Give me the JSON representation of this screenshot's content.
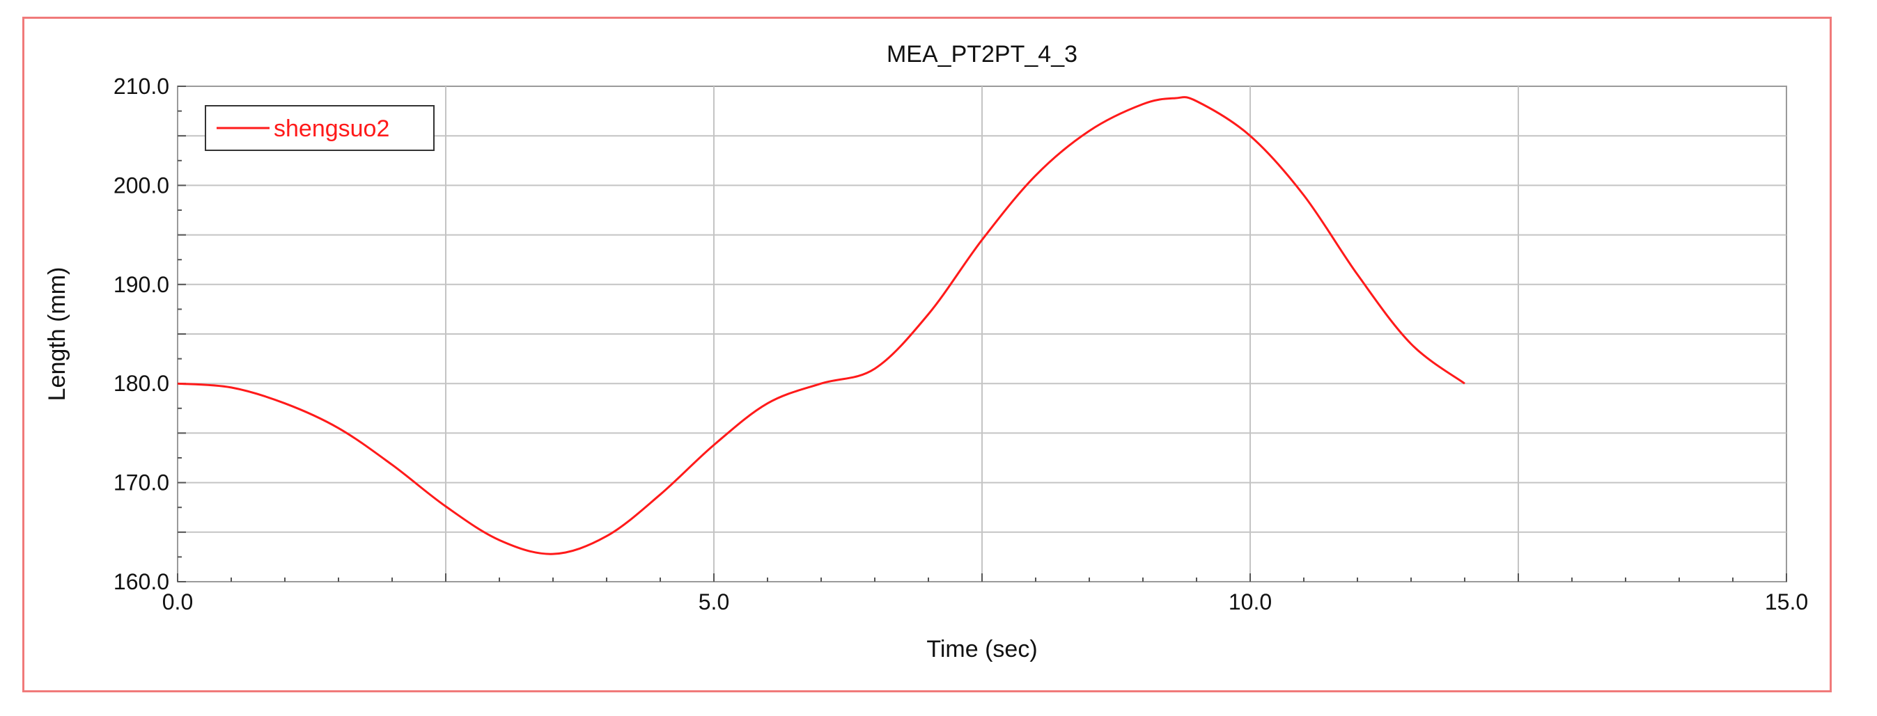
{
  "chart_data": {
    "type": "line",
    "title": "MEA_PT2PT_4_3",
    "xlabel": "Time (sec)",
    "ylabel": "Length (mm)",
    "xlim": [
      0.0,
      15.0
    ],
    "ylim": [
      160.0,
      210.0
    ],
    "x_ticks": [
      "0.0",
      "5.0",
      "10.0",
      "15.0"
    ],
    "y_ticks": [
      "160.0",
      "170.0",
      "180.0",
      "190.0",
      "200.0",
      "210.0"
    ],
    "grid": true,
    "legend_position": "top-left",
    "series": [
      {
        "name": "shengsuo2",
        "color": "#ff1a1a",
        "x": [
          0.0,
          0.5,
          1.0,
          1.5,
          2.0,
          2.5,
          3.0,
          3.5,
          4.0,
          4.5,
          5.0,
          5.5,
          6.0,
          6.5,
          7.0,
          7.5,
          8.0,
          8.5,
          9.0,
          9.3,
          9.5,
          10.0,
          10.5,
          11.0,
          11.5,
          12.0
        ],
        "y": [
          180.0,
          179.6,
          178.0,
          175.5,
          171.8,
          167.6,
          164.2,
          162.8,
          164.6,
          168.8,
          173.8,
          178.0,
          180.0,
          181.5,
          187.0,
          194.5,
          201.0,
          205.5,
          208.2,
          208.8,
          208.5,
          205.0,
          199.0,
          191.0,
          184.0,
          180.0
        ]
      }
    ]
  }
}
